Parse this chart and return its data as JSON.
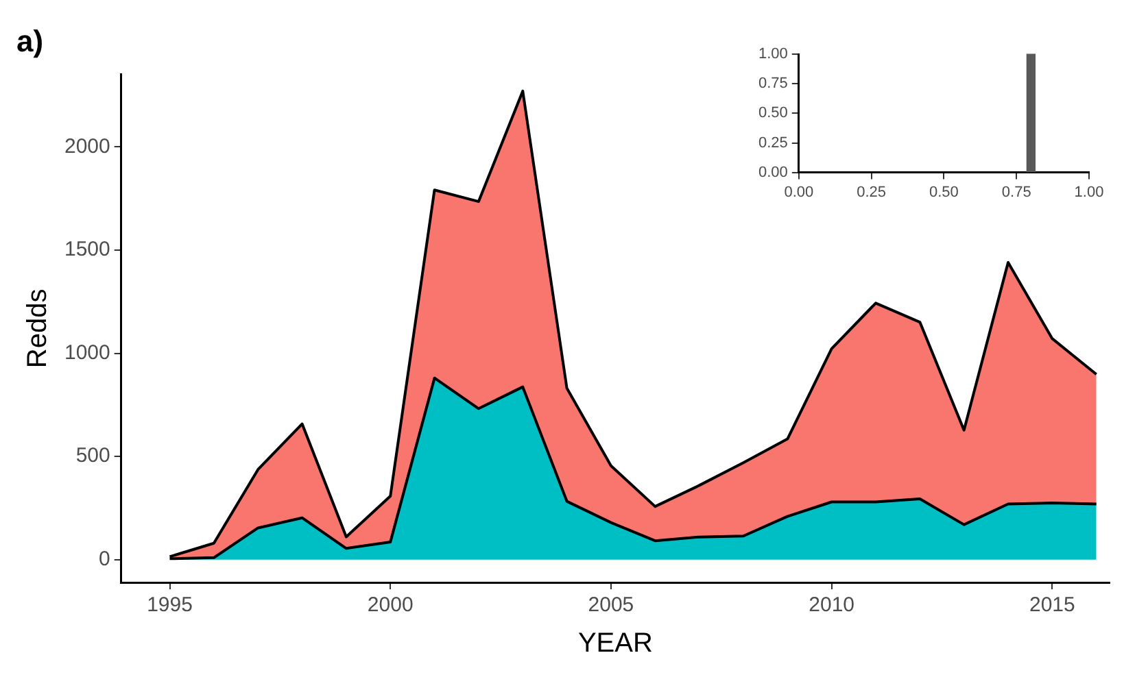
{
  "chart_data": [
    {
      "type": "area",
      "title": "a)",
      "xlabel": "YEAR",
      "ylabel": "Redds",
      "stacked": true,
      "grid": false,
      "legend": false,
      "x": [
        1995,
        1996,
        1997,
        1998,
        1999,
        2000,
        2001,
        2002,
        2003,
        2004,
        2005,
        2006,
        2007,
        2008,
        2009,
        2010,
        2011,
        2012,
        2013,
        2014,
        2015,
        2016
      ],
      "series": [
        {
          "color": "#00bfc4",
          "values": [
            5,
            10,
            154,
            203,
            55,
            86,
            880,
            732,
            837,
            283,
            180,
            92,
            110,
            115,
            210,
            280,
            280,
            295,
            170,
            270,
            275,
            270
          ]
        },
        {
          "color": "#f8766d",
          "values": [
            10,
            70,
            283,
            455,
            56,
            222,
            911,
            1003,
            1433,
            548,
            275,
            166,
            250,
            355,
            375,
            742,
            963,
            856,
            458,
            1170,
            796,
            628
          ]
        }
      ],
      "xlim": [
        1993.9,
        2016.3
      ],
      "xticks": [
        1995,
        2000,
        2005,
        2010,
        2015
      ],
      "ylim": [
        -110,
        2350
      ],
      "yticks": [
        0,
        500,
        1000,
        1500,
        2000
      ]
    },
    {
      "type": "bar",
      "x": [
        0.8
      ],
      "values": [
        1
      ],
      "color": "#595959",
      "grid": false,
      "legend": false,
      "xlim": [
        0,
        1
      ],
      "xticks": [
        {
          "value": 0,
          "label": "0.00"
        },
        {
          "value": 0.25,
          "label": "0.25"
        },
        {
          "value": 0.5,
          "label": "0.50"
        },
        {
          "value": 0.75,
          "label": "0.75"
        },
        {
          "value": 1,
          "label": "1.00"
        }
      ],
      "ylim": [
        0,
        1
      ],
      "yticks": [
        {
          "value": 0,
          "label": "0.00"
        },
        {
          "value": 0.25,
          "label": "0.25"
        },
        {
          "value": 0.5,
          "label": "0.50"
        },
        {
          "value": 0.75,
          "label": "0.75"
        },
        {
          "value": 1,
          "label": "1.00"
        }
      ]
    }
  ]
}
